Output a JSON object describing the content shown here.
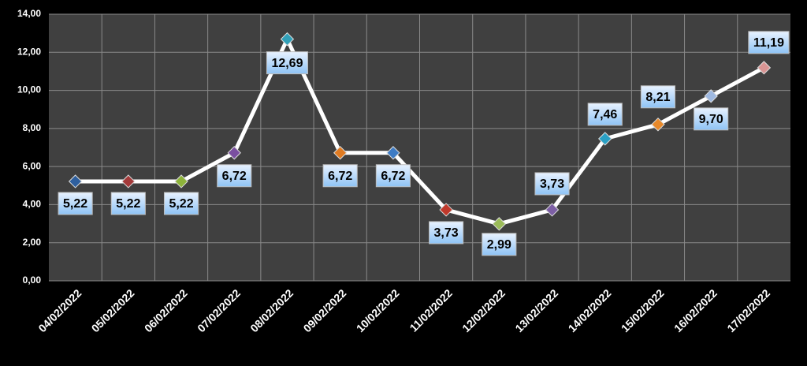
{
  "chart_data": {
    "type": "line",
    "categories": [
      "04/02/2022",
      "05/02/2022",
      "06/02/2022",
      "07/02/2022",
      "08/02/2022",
      "09/02/2022",
      "10/02/2022",
      "11/02/2022",
      "12/02/2022",
      "13/02/2022",
      "14/02/2022",
      "15/02/2022",
      "16/02/2022",
      "17/02/2022"
    ],
    "series": [
      {
        "color": "#ffffff",
        "values": [
          5.22,
          5.22,
          5.22,
          6.72,
          12.69,
          6.72,
          6.72,
          3.73,
          2.99,
          3.73,
          7.46,
          8.21,
          9.7,
          11.19
        ],
        "value_labels": [
          "5,22",
          "5,22",
          "5,22",
          "6,72",
          "12,69",
          "6,72",
          "6,72",
          "3,73",
          "2,99",
          "3,73",
          "7,46",
          "8,21",
          "9,70",
          "11,19"
        ],
        "marker_colors": [
          "#2e5f9e",
          "#a33a3a",
          "#8db33a",
          "#7a4fa0",
          "#31a0b8",
          "#e07b22",
          "#3d7bc4",
          "#c0392b",
          "#9bbb59",
          "#7d5fa5",
          "#2aa0c4",
          "#e8892a",
          "#9fb9e0",
          "#d99594"
        ]
      }
    ],
    "ylim": [
      0,
      14
    ],
    "yticks": [
      {
        "value": 0,
        "label": "0,00"
      },
      {
        "value": 2,
        "label": "2,00"
      },
      {
        "value": 4,
        "label": "4,00"
      },
      {
        "value": 6,
        "label": "6,00"
      },
      {
        "value": 8,
        "label": "8,00"
      },
      {
        "value": 10,
        "label": "10,00"
      },
      {
        "value": 12,
        "label": "12,00"
      },
      {
        "value": 14,
        "label": "14,00"
      }
    ],
    "grid": true
  }
}
